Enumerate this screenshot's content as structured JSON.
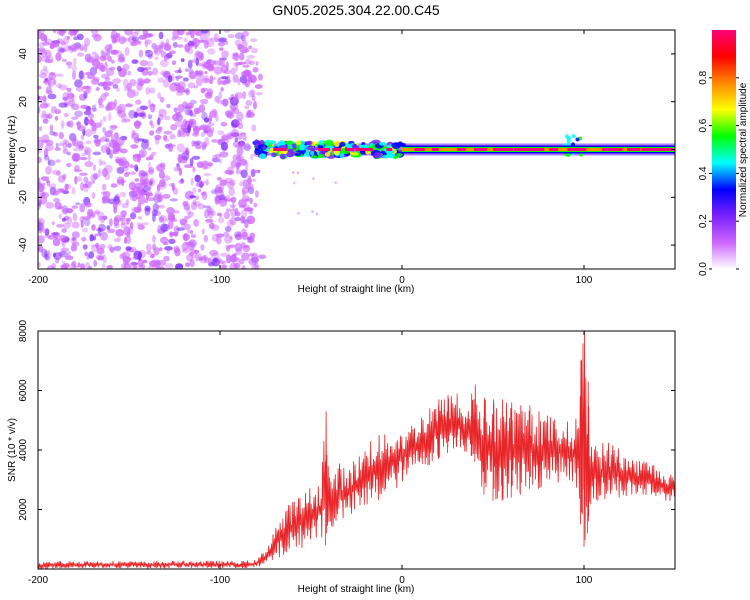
{
  "title": "GN05.2025.304.22.00.C45",
  "chart_data": [
    {
      "type": "heatmap",
      "name": "spectrogram",
      "xlabel": "Height of straight line (km)",
      "ylabel": "Frequency (Hz)",
      "xlim": [
        -200,
        150
      ],
      "ylim": [
        -50,
        50
      ],
      "xticks": [
        -200,
        -100,
        0,
        100
      ],
      "xtick_labels": [
        "-200",
        "-100",
        "0",
        "100"
      ],
      "yticks": [
        -40,
        -20,
        0,
        20,
        40
      ],
      "ytick_labels": [
        "-40",
        "-20",
        "0",
        "20",
        "40"
      ],
      "noise_region_x": [
        -200,
        -80
      ],
      "signal_region_x": [
        -80,
        150
      ],
      "signal_frequency_hz": 0,
      "colorbar": {
        "label": "Normalized spectral amplitude",
        "range": [
          0.0,
          1.0
        ],
        "ticks": [
          0.0,
          0.2,
          0.4,
          0.6,
          0.8
        ],
        "tick_labels": [
          "0.0",
          "0.2",
          "0.4",
          "0.6",
          "0.8"
        ],
        "colors": [
          "#ffffff",
          "#cc66ff",
          "#7a22ff",
          "#0000ff",
          "#00ffff",
          "#00ff00",
          "#ffff00",
          "#ff8800",
          "#ff0000",
          "#ff0077"
        ]
      }
    },
    {
      "type": "line",
      "name": "snr",
      "xlabel": "Height of straight line (km)",
      "ylabel": "SNR (10 * v/v)",
      "xlim": [
        -200,
        150
      ],
      "ylim": [
        0,
        8000
      ],
      "xticks": [
        -200,
        -100,
        0,
        100
      ],
      "xtick_labels": [
        "-200",
        "-100",
        "0",
        "100"
      ],
      "yticks": [
        2000,
        4000,
        6000,
        8000
      ],
      "ytick_labels": [
        "2000",
        "4000",
        "6000",
        "8000"
      ],
      "color": "#e8262a",
      "series": [
        {
          "name": "SNR",
          "x": [
            -200,
            -180,
            -160,
            -140,
            -120,
            -100,
            -90,
            -80,
            -75,
            -70,
            -65,
            -60,
            -55,
            -50,
            -45,
            -42,
            -40,
            -35,
            -30,
            -25,
            -20,
            -15,
            -10,
            -5,
            0,
            5,
            10,
            15,
            20,
            25,
            30,
            35,
            38,
            40,
            45,
            50,
            55,
            60,
            65,
            70,
            75,
            80,
            85,
            90,
            95,
            98,
            100,
            102,
            105,
            110,
            115,
            120,
            125,
            130,
            135,
            140,
            145,
            150
          ],
          "upper": [
            250,
            280,
            270,
            260,
            280,
            280,
            270,
            300,
            700,
            1500,
            1900,
            2400,
            2500,
            2800,
            3000,
            5300,
            3200,
            3600,
            3400,
            3800,
            4200,
            4700,
            4500,
            4800,
            4700,
            4900,
            5200,
            5400,
            5700,
            5850,
            5900,
            5200,
            5900,
            6200,
            5750,
            5700,
            5700,
            5600,
            5500,
            5500,
            5300,
            5200,
            5100,
            5000,
            4900,
            7000,
            8000,
            6300,
            4400,
            4300,
            4300,
            4100,
            3800,
            3700,
            3700,
            3500,
            3300,
            3200
          ],
          "lower": [
            0,
            20,
            30,
            20,
            30,
            20,
            20,
            40,
            60,
            200,
            400,
            500,
            700,
            900,
            1100,
            800,
            1200,
            1500,
            1700,
            1800,
            1900,
            2100,
            2300,
            2500,
            2900,
            3100,
            3300,
            3500,
            3700,
            3900,
            4100,
            3900,
            3800,
            3600,
            2500,
            2300,
            2300,
            2400,
            2500,
            2700,
            2700,
            2800,
            2900,
            2900,
            2900,
            1500,
            750,
            1200,
            2200,
            2200,
            2300,
            2400,
            2400,
            2400,
            2400,
            2300,
            2300,
            2200
          ]
        }
      ]
    }
  ]
}
